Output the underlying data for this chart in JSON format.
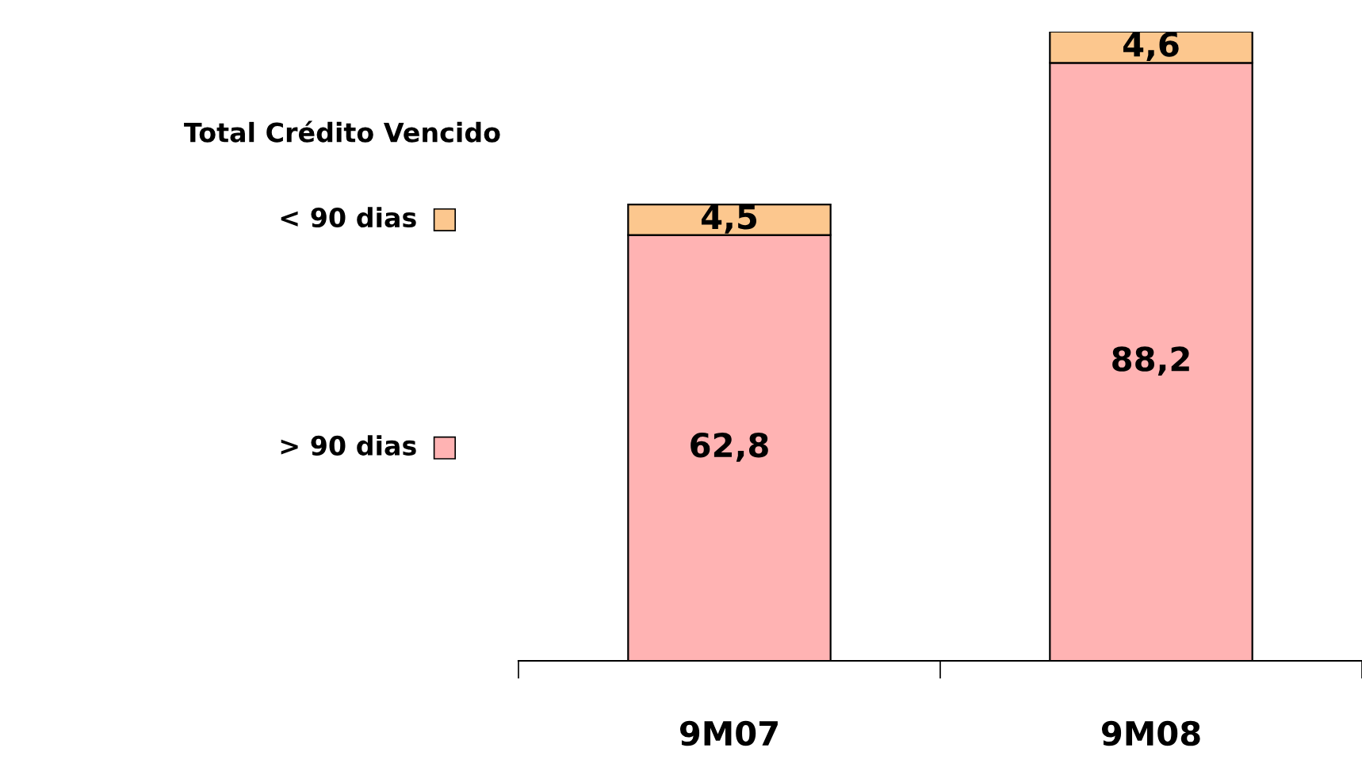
{
  "chart_data": {
    "type": "bar",
    "title": "Total Crédito Vencido",
    "categories": [
      "9M07",
      "9M08"
    ],
    "stacked": true,
    "series": [
      {
        "name": "> 90 dias",
        "color": "#ffb3b3",
        "values": [
          62.8,
          88.2
        ],
        "value_labels": [
          "62,8",
          "88,2"
        ]
      },
      {
        "name": "< 90 dias",
        "color": "#fcc78e",
        "values": [
          4.5,
          4.6
        ],
        "value_labels": [
          "4,5",
          "4,6"
        ]
      }
    ],
    "legend": "left"
  }
}
